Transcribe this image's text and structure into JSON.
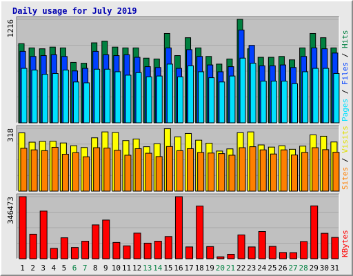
{
  "title": "Daily usage for July 2019",
  "chart_data": [
    {
      "type": "bar",
      "panel": "hits_files_pages",
      "x": [
        "1",
        "2",
        "3",
        "4",
        "5",
        "6",
        "7",
        "8",
        "9",
        "10",
        "11",
        "12",
        "13",
        "14",
        "15",
        "16",
        "17",
        "18",
        "19",
        "20",
        "21",
        "22",
        "23",
        "24",
        "25",
        "26",
        "27",
        "28",
        "29",
        "30",
        "31"
      ],
      "ylim": [
        0,
        1216
      ],
      "ytick_label": "1216",
      "series": [
        {
          "name": "Hits",
          "color": "#008040",
          "values": [
            930,
            880,
            870,
            890,
            880,
            710,
            700,
            940,
            960,
            890,
            880,
            880,
            760,
            750,
            1050,
            790,
            1000,
            880,
            780,
            690,
            750,
            1216,
            870,
            770,
            770,
            780,
            740,
            880,
            1050,
            1000,
            880
          ]
        },
        {
          "name": "Files",
          "color": "#0040ff",
          "values": [
            840,
            780,
            790,
            800,
            780,
            610,
            640,
            840,
            800,
            790,
            800,
            770,
            660,
            650,
            880,
            640,
            860,
            780,
            680,
            600,
            660,
            1090,
            910,
            670,
            670,
            680,
            650,
            780,
            880,
            870,
            820
          ]
        },
        {
          "name": "Pages",
          "color": "#00e0ff",
          "values": [
            640,
            620,
            570,
            580,
            620,
            480,
            470,
            630,
            630,
            600,
            560,
            590,
            540,
            550,
            690,
            540,
            670,
            600,
            530,
            480,
            550,
            760,
            700,
            490,
            490,
            490,
            460,
            600,
            640,
            640,
            580
          ]
        }
      ],
      "ylabels": [
        "Pages",
        "Files",
        "Hits"
      ]
    },
    {
      "type": "bar",
      "panel": "visits_sites",
      "x": [
        "1",
        "2",
        "3",
        "4",
        "5",
        "6",
        "7",
        "8",
        "9",
        "10",
        "11",
        "12",
        "13",
        "14",
        "15",
        "16",
        "17",
        "18",
        "19",
        "20",
        "21",
        "22",
        "23",
        "24",
        "25",
        "26",
        "27",
        "28",
        "29",
        "30",
        "31"
      ],
      "ylim": [
        0,
        318
      ],
      "ytick_label": "318",
      "series": [
        {
          "name": "Visits",
          "color": "#ffff00",
          "values": [
            295,
            248,
            252,
            253,
            244,
            230,
            221,
            270,
            300,
            297,
            256,
            264,
            225,
            240,
            316,
            275,
            292,
            258,
            243,
            203,
            214,
            296,
            300,
            234,
            223,
            230,
            212,
            228,
            285,
            278,
            249
          ]
        },
        {
          "name": "Sites",
          "color": "#ff8000",
          "values": [
            217,
            209,
            205,
            222,
            187,
            195,
            174,
            220,
            218,
            207,
            182,
            215,
            192,
            175,
            226,
            205,
            215,
            196,
            193,
            190,
            182,
            220,
            225,
            209,
            188,
            209,
            183,
            196,
            220,
            210,
            197
          ]
        }
      ],
      "ylabels": [
        "Sites",
        "Visits"
      ]
    },
    {
      "type": "bar",
      "panel": "kbytes",
      "x": [
        "1",
        "2",
        "3",
        "4",
        "5",
        "6",
        "7",
        "8",
        "9",
        "10",
        "11",
        "12",
        "13",
        "14",
        "15",
        "16",
        "17",
        "18",
        "19",
        "20",
        "21",
        "22",
        "23",
        "24",
        "25",
        "26",
        "27",
        "28",
        "29",
        "30",
        "31"
      ],
      "ylim": [
        0,
        346473
      ],
      "ytick_label": "346473",
      "series": [
        {
          "name": "KBytes",
          "color": "#ff0000",
          "values": [
            346473,
            137000,
            266000,
            58000,
            117000,
            63000,
            98000,
            189000,
            216000,
            91000,
            72000,
            143000,
            87000,
            98000,
            124000,
            346473,
            66000,
            294000,
            68000,
            11000,
            25000,
            133000,
            66000,
            152000,
            69000,
            35000,
            34000,
            96000,
            295000,
            142000,
            119000
          ]
        }
      ],
      "ylabels": [
        "KBytes"
      ]
    }
  ],
  "x_label_colors": {
    "weekday": "#000000",
    "weekend": "#008040"
  },
  "weekend_days": [
    "6",
    "7",
    "13",
    "14",
    "20",
    "21",
    "27",
    "28"
  ]
}
